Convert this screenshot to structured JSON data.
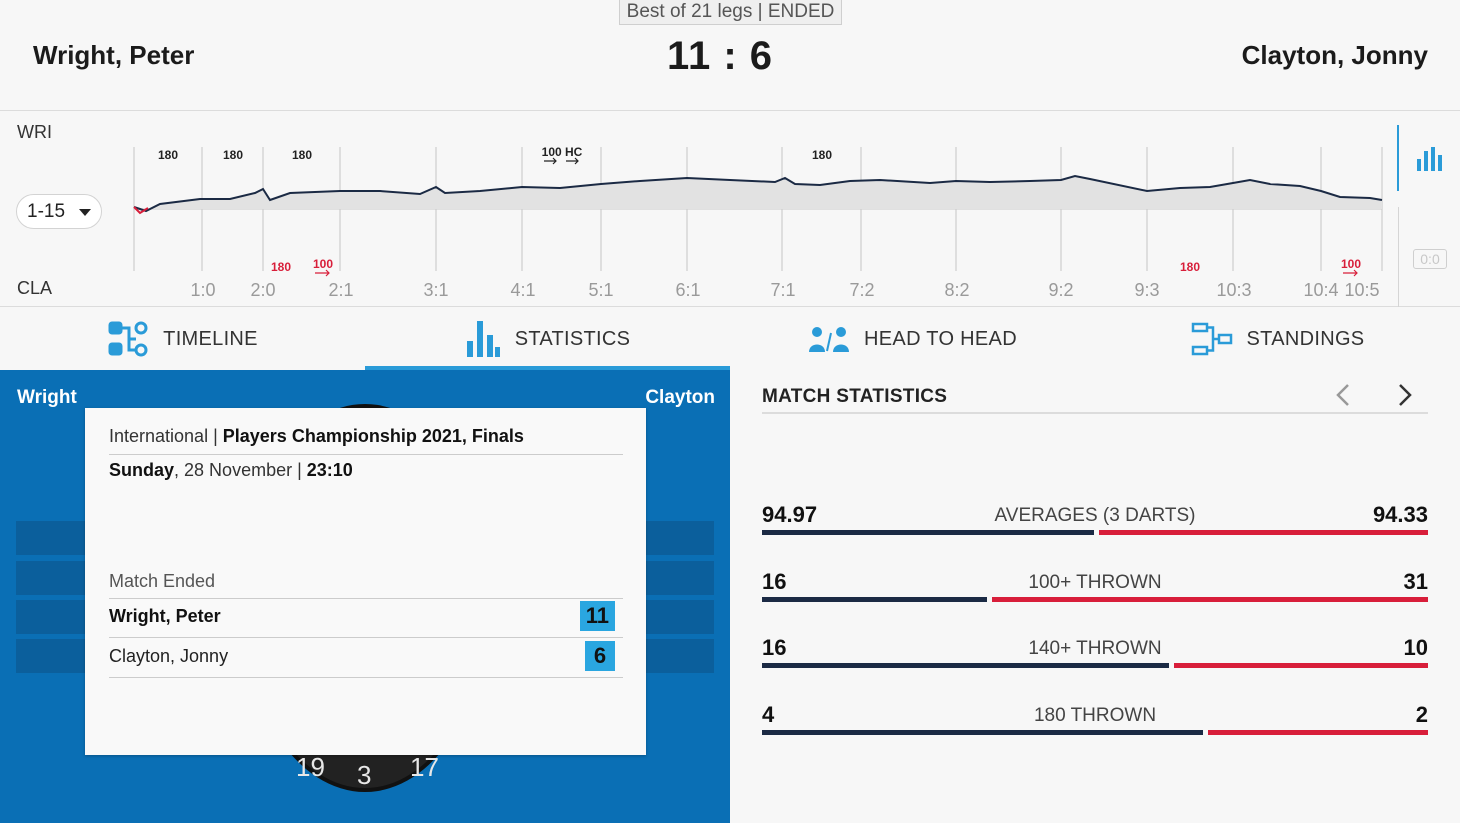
{
  "header": {
    "format": "Best of 21 legs | ENDED",
    "player_left": "Wright, Peter",
    "player_right": "Clayton, Jonny",
    "score": "11 : 6"
  },
  "timeline": {
    "label_top": "WRI",
    "label_bottom": "CLA",
    "range": "1-15",
    "leg_scores": [
      "1:0",
      "2:0",
      "2:1",
      "3:1",
      "4:1",
      "5:1",
      "6:1",
      "7:1",
      "7:2",
      "8:2",
      "9:2",
      "9:3",
      "10:3",
      "10:4",
      "10:5"
    ],
    "markers_top": [
      "180",
      "180",
      "180",
      "100 HC",
      "180"
    ],
    "markers_bottom": [
      "180",
      "100",
      "180",
      "100"
    ],
    "side_score": "0:0"
  },
  "tabs": [
    {
      "label": "TIMELINE",
      "active": false
    },
    {
      "label": "STATISTICS",
      "active": true
    },
    {
      "label": "HEAD TO HEAD",
      "active": false
    },
    {
      "label": "STANDINGS",
      "active": false
    }
  ],
  "board": {
    "left_name": "Wright",
    "right_name": "Clayton",
    "numbers": [
      "19",
      "3",
      "17"
    ]
  },
  "card": {
    "event_prefix": "International",
    "event_name": "Players Championship 2021, Finals",
    "day": "Sunday",
    "date": "28 November",
    "time": "23:10",
    "status": "Match Ended",
    "players": [
      {
        "name": "Wright, Peter",
        "score": "11"
      },
      {
        "name": "Clayton, Jonny",
        "score": "6"
      }
    ]
  },
  "stats": {
    "title": "MATCH STATISTICS",
    "rows": [
      {
        "label": "AVERAGES (3 DARTS)",
        "left": "94.97",
        "right": "94.33",
        "left_share": 0.5017
      },
      {
        "label": "100+ THROWN",
        "left": "16",
        "right": "31",
        "left_share": 0.34
      },
      {
        "label": "140+ THROWN",
        "left": "16",
        "right": "10",
        "left_share": 0.615
      },
      {
        "label": "180 THROWN",
        "left": "4",
        "right": "2",
        "left_share": 0.667
      }
    ]
  },
  "colors": {
    "accent": "#2a9bd8",
    "panel_blue": "#0a6fb5",
    "left_bar": "#1b2a44",
    "right_bar": "#d81e3a",
    "marker_red": "#d81e3a"
  }
}
